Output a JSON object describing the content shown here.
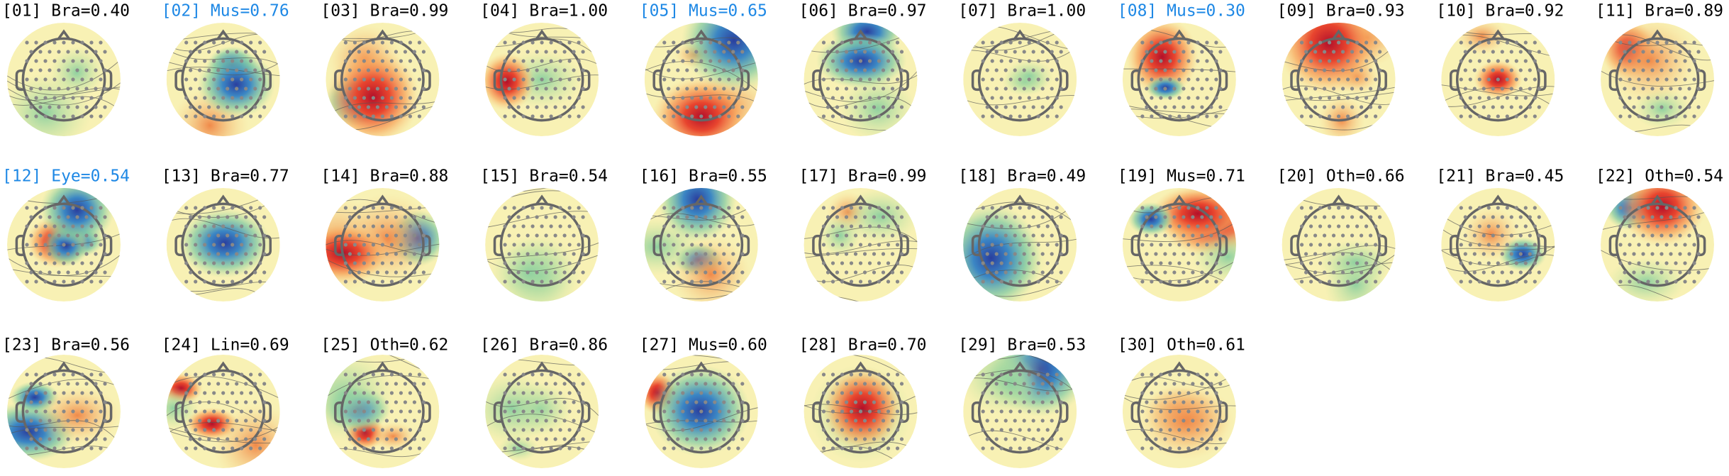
{
  "components": [
    {
      "label": "[01] Bra=0.40",
      "highlighted": false
    },
    {
      "label": "[02] Mus=0.76",
      "highlighted": true
    },
    {
      "label": "[03] Bra=0.99",
      "highlighted": false
    },
    {
      "label": "[04] Bra=1.00",
      "highlighted": false
    },
    {
      "label": "[05] Mus=0.65",
      "highlighted": true
    },
    {
      "label": "[06] Bra=0.97",
      "highlighted": false
    },
    {
      "label": "[07] Bra=1.00",
      "highlighted": false
    },
    {
      "label": "[08] Mus=0.30",
      "highlighted": true
    },
    {
      "label": "[09] Bra=0.93",
      "highlighted": false
    },
    {
      "label": "[10] Bra=0.92",
      "highlighted": false
    },
    {
      "label": "[11] Bra=0.89",
      "highlighted": false
    },
    {
      "label": "[12] Eye=0.54",
      "highlighted": true
    },
    {
      "label": "[13] Bra=0.77",
      "highlighted": false
    },
    {
      "label": "[14] Bra=0.88",
      "highlighted": false
    },
    {
      "label": "[15] Bra=0.54",
      "highlighted": false
    },
    {
      "label": "[16] Bra=0.55",
      "highlighted": false
    },
    {
      "label": "[17] Bra=0.99",
      "highlighted": false
    },
    {
      "label": "[18] Bra=0.49",
      "highlighted": false
    },
    {
      "label": "[19] Mus=0.71",
      "highlighted": false
    },
    {
      "label": "[20] Oth=0.66",
      "highlighted": false
    },
    {
      "label": "[21] Bra=0.45",
      "highlighted": false
    },
    {
      "label": "[22] Oth=0.54",
      "highlighted": false
    },
    {
      "label": "[23] Bra=0.56",
      "highlighted": false
    },
    {
      "label": "[24] Lin=0.69",
      "highlighted": false
    },
    {
      "label": "[25] Oth=0.62",
      "highlighted": false
    },
    {
      "label": "[26] Bra=0.86",
      "highlighted": false
    },
    {
      "label": "[27] Mus=0.60",
      "highlighted": false
    },
    {
      "label": "[28] Bra=0.70",
      "highlighted": false
    },
    {
      "label": "[29] Bra=0.53",
      "highlighted": false
    },
    {
      "label": "[30] Oth=0.61",
      "highlighted": false
    }
  ],
  "highlight_color": "#1e88e5",
  "text_color": "#000000"
}
